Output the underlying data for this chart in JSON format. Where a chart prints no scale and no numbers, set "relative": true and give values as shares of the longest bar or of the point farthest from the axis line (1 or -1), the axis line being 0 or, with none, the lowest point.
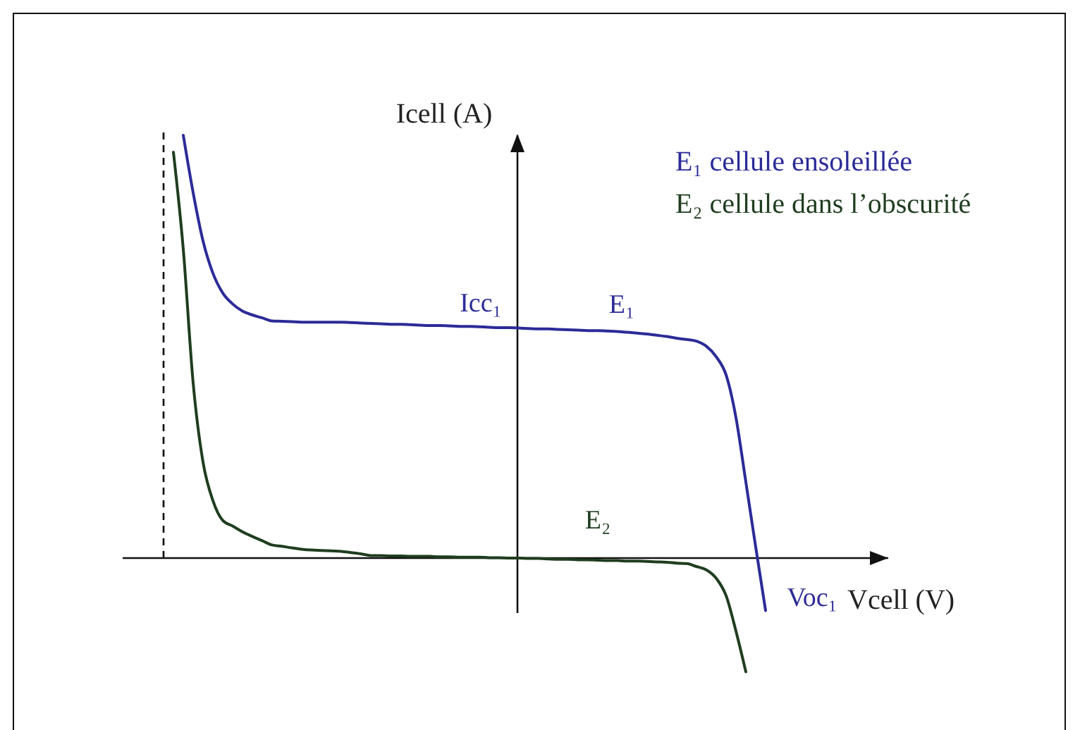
{
  "chart_data": {
    "type": "line",
    "relative": true,
    "xlabel": "Vcell (V)",
    "ylabel": "Icell (A)",
    "categories": [
      null,
      null,
      null,
      null,
      null,
      null,
      null,
      null,
      null,
      null,
      null,
      null,
      null,
      null,
      null,
      null,
      null,
      null,
      null,
      null,
      null,
      null,
      null,
      null,
      null,
      null,
      null,
      null,
      null,
      null,
      null,
      null,
      null,
      null,
      null,
      null,
      null,
      null,
      null,
      null,
      null,
      null,
      null,
      null,
      null,
      null,
      null,
      null,
      null,
      null,
      null,
      null,
      null,
      null,
      null,
      null,
      null,
      null,
      null,
      null,
      null,
      null
    ],
    "series": [
      {
        "name": "E₁ cellule ensoleillée",
        "color": "#2b2b98",
        "values": [
          null,
          null,
          1.0,
          0.864,
          0.75,
          0.674,
          0.627,
          0.601,
          0.584,
          0.575,
          0.568,
          0.561,
          0.56,
          0.559,
          0.558,
          0.558,
          0.558,
          0.558,
          0.558,
          0.557,
          0.556,
          0.555,
          0.554,
          0.553,
          0.553,
          0.552,
          0.551,
          0.55,
          0.55,
          0.549,
          0.548,
          0.548,
          0.547,
          0.546,
          0.545,
          0.545,
          0.544,
          0.543,
          0.542,
          0.542,
          0.541,
          0.54,
          0.539,
          0.538,
          0.538,
          0.537,
          0.536,
          0.534,
          0.532,
          0.53,
          0.527,
          0.524,
          0.52,
          0.517,
          0.513,
          0.501,
          0.476,
          0.433,
          0.332,
          0.18,
          0.026,
          -0.124
        ]
      },
      {
        "name": "E₂ cellule dans l’obscurité",
        "color": "#1f3d1f",
        "values": [
          null,
          0.96,
          0.73,
          0.414,
          0.227,
          0.136,
          0.089,
          0.076,
          0.062,
          0.051,
          0.041,
          0.031,
          0.028,
          0.024,
          0.021,
          0.019,
          0.018,
          0.017,
          0.016,
          0.013,
          0.01,
          0.006,
          0.006,
          0.005,
          0.005,
          0.004,
          0.004,
          0.004,
          0.003,
          0.003,
          0.002,
          0.002,
          0.002,
          0.001,
          0.001,
          0,
          0,
          -0.001,
          -0.001,
          -0.002,
          -0.003,
          -0.003,
          -0.004,
          -0.004,
          -0.005,
          -0.006,
          -0.006,
          -0.007,
          -0.007,
          -0.008,
          -0.009,
          -0.01,
          -0.012,
          -0.013,
          -0.02,
          -0.028,
          -0.048,
          -0.089,
          -0.173,
          -0.269,
          null,
          null
        ]
      }
    ],
    "ref_lines": [
      {
        "axis": "x",
        "value": null,
        "line_style": "dashed",
        "color": "#000000"
      }
    ],
    "annotations": [
      "Icc₁",
      "E₁",
      "E₂",
      "Voc₁"
    ]
  }
}
